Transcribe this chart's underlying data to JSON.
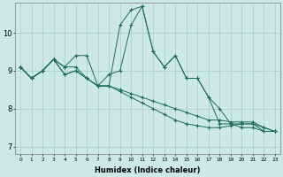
{
  "xlabel": "Humidex (Indice chaleur)",
  "x_ticks": [
    0,
    1,
    2,
    3,
    4,
    5,
    6,
    7,
    8,
    9,
    10,
    11,
    12,
    13,
    14,
    15,
    16,
    17,
    18,
    19,
    20,
    21,
    22,
    23
  ],
  "ylim": [
    6.8,
    10.8
  ],
  "yticks": [
    7,
    8,
    9,
    10
  ],
  "background_color": "#cce8e8",
  "grid_color": "#aacccc",
  "line_color": "#1e6b5e",
  "series": [
    [
      9.1,
      8.8,
      9.0,
      9.3,
      9.1,
      9.1,
      8.8,
      8.6,
      8.6,
      10.2,
      10.6,
      10.7,
      9.5,
      9.1,
      9.4,
      8.8,
      8.8,
      8.3,
      8.0,
      7.6,
      7.5,
      7.5,
      7.4,
      7.4
    ],
    [
      9.1,
      8.8,
      9.0,
      9.3,
      9.1,
      9.4,
      9.4,
      8.6,
      8.9,
      9.0,
      10.2,
      10.7,
      9.5,
      9.1,
      9.4,
      8.8,
      8.8,
      8.3,
      7.6,
      7.6,
      7.6,
      7.6,
      7.4,
      7.4
    ],
    [
      9.1,
      8.8,
      9.0,
      9.3,
      8.9,
      9.0,
      8.8,
      8.6,
      8.6,
      8.5,
      8.4,
      8.3,
      8.2,
      8.1,
      8.0,
      7.9,
      7.8,
      7.7,
      7.7,
      7.65,
      7.65,
      7.65,
      7.5,
      7.4
    ],
    [
      9.1,
      8.8,
      9.0,
      9.3,
      8.9,
      9.0,
      8.8,
      8.6,
      8.6,
      8.45,
      8.3,
      8.15,
      8.0,
      7.85,
      7.7,
      7.6,
      7.55,
      7.5,
      7.5,
      7.55,
      7.6,
      7.6,
      7.5,
      7.4
    ]
  ],
  "figsize": [
    3.2,
    2.0
  ],
  "dpi": 100
}
